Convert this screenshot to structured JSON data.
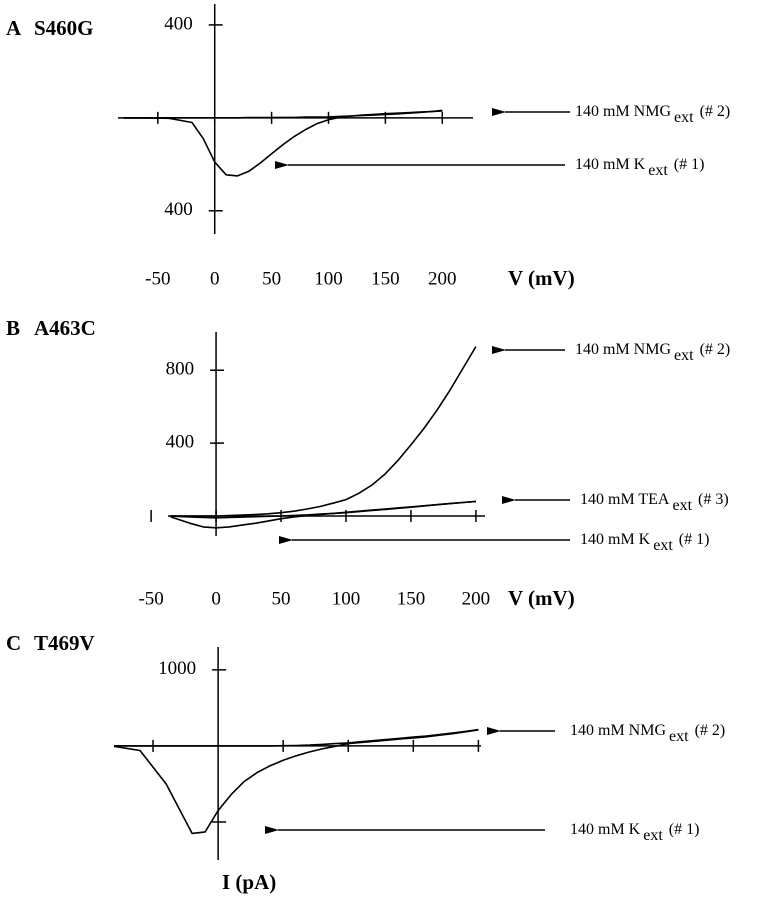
{
  "chart_data": [
    {
      "type": "line",
      "panel": "A",
      "title": "S460G",
      "xlabel": "V (mV)",
      "x": [
        -80,
        -60,
        -40,
        -20,
        -10,
        0,
        10,
        20,
        30,
        40,
        50,
        60,
        70,
        80,
        90,
        100,
        110,
        120,
        130,
        140,
        150,
        160,
        170,
        180,
        190,
        200
      ],
      "series": [
        {
          "name": "140 mM NMG",
          "name_sub": "ext",
          "name_note": "(# 2)",
          "color": "#000000",
          "values": [
            -1,
            -1,
            0,
            0,
            0,
            0,
            0,
            0,
            1,
            1,
            1,
            2,
            2,
            3,
            3,
            4,
            6,
            8,
            10,
            12,
            15,
            17,
            20,
            23,
            27,
            32
          ]
        },
        {
          "name": "140 mM K",
          "name_sub": "ext",
          "name_note": "(# 1)",
          "color": "#000000",
          "values": [
            0,
            0,
            -2,
            -20,
            -90,
            -190,
            -245,
            -250,
            -230,
            -195,
            -155,
            -115,
            -80,
            -50,
            -25,
            -8,
            2,
            8,
            12,
            15,
            18,
            20,
            22,
            25,
            27,
            30
          ]
        }
      ],
      "xlim": [
        -85,
        227
      ],
      "ylim": [
        -500,
        490
      ],
      "xticks": [
        -50,
        0,
        50,
        100,
        150,
        200
      ],
      "yticks": [
        400,
        {
          "value": -400,
          "label": "400"
        }
      ]
    },
    {
      "type": "line",
      "panel": "B",
      "title": "A463C",
      "xlabel": "V (mV)",
      "x": [
        -35,
        -20,
        -10,
        0,
        10,
        20,
        30,
        40,
        50,
        60,
        70,
        80,
        90,
        100,
        110,
        120,
        130,
        140,
        150,
        160,
        170,
        180,
        190,
        200
      ],
      "series": [
        {
          "name": "140 mM NMG",
          "name_sub": "ext",
          "name_note": "(# 2)",
          "color": "#000000",
          "values": [
            0,
            0,
            0,
            0,
            2,
            5,
            8,
            12,
            18,
            26,
            38,
            52,
            70,
            90,
            125,
            170,
            230,
            305,
            390,
            480,
            580,
            690,
            810,
            930
          ]
        },
        {
          "name": "140 mM TEA",
          "name_sub": "ext",
          "name_note": "(# 3)",
          "color": "#000000",
          "values": [
            -1,
            -5,
            -8,
            -10,
            -8,
            -6,
            -4,
            -2,
            0,
            3,
            6,
            10,
            14,
            18,
            24,
            30,
            36,
            42,
            48,
            55,
            62,
            68,
            74,
            80
          ]
        },
        {
          "name": "140 mM K",
          "name_sub": "ext",
          "name_note": "(# 1)",
          "color": "#000000",
          "values": [
            -5,
            -40,
            -60,
            -65,
            -60,
            -50,
            -40,
            -28,
            -15,
            -5,
            2,
            8,
            14,
            20,
            26,
            32,
            38,
            44,
            50,
            56,
            62,
            68,
            74,
            80
          ]
        }
      ],
      "xlim": [
        -37,
        207
      ],
      "ylim": [
        -110,
        1010
      ],
      "xticks": [
        -50,
        0,
        50,
        100,
        150,
        200
      ],
      "yticks": [
        400,
        800
      ]
    },
    {
      "type": "line",
      "panel": "C",
      "title": "T469V",
      "ylabel": "I (pA)",
      "x": [
        -80,
        -60,
        -40,
        -20,
        -10,
        0,
        10,
        20,
        30,
        40,
        50,
        60,
        70,
        80,
        90,
        100,
        110,
        120,
        130,
        140,
        150,
        160,
        170,
        180,
        190,
        200
      ],
      "series": [
        {
          "name": "140 mM NMG",
          "name_sub": "ext",
          "name_note": "(# 2)",
          "color": "#000000",
          "values": [
            0,
            0,
            0,
            0,
            0,
            0,
            0,
            0,
            0,
            0,
            2,
            5,
            10,
            20,
            30,
            40,
            55,
            70,
            85,
            100,
            115,
            130,
            150,
            170,
            190,
            215
          ]
        },
        {
          "name": "140 mM K",
          "name_sub": "ext",
          "name_note": "(# 1)",
          "color": "#000000",
          "values": [
            -5,
            -60,
            -500,
            -1150,
            -1130,
            -850,
            -640,
            -470,
            -350,
            -260,
            -190,
            -130,
            -80,
            -40,
            -5,
            30,
            45,
            60,
            75,
            90,
            105,
            120,
            140,
            160,
            185,
            210
          ]
        }
      ],
      "xlim": [
        -80,
        202
      ],
      "ylim": [
        -1500,
        1300
      ],
      "xtick_marks": [
        -50,
        50,
        100,
        150,
        200
      ],
      "yticks": [
        1000
      ],
      "ytick_marks": [
        -1000
      ]
    }
  ]
}
